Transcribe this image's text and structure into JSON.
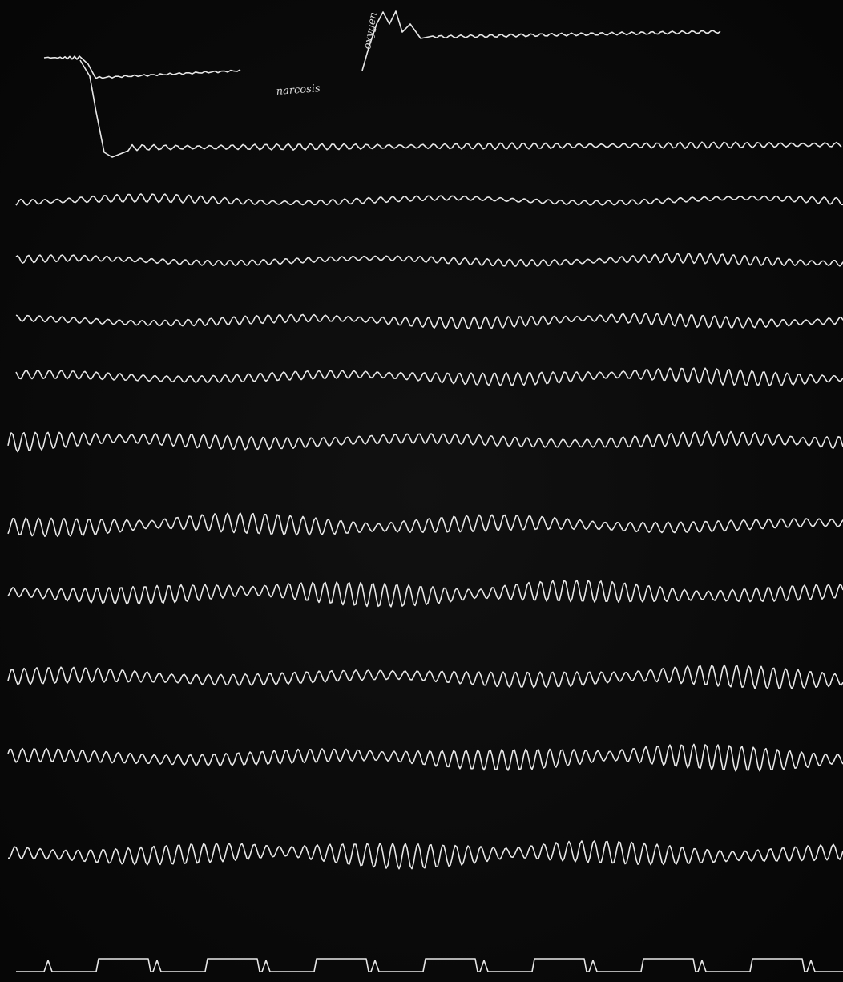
{
  "annotations": {
    "top_label": "oxygen",
    "mid_label": "narcosis"
  }
}
